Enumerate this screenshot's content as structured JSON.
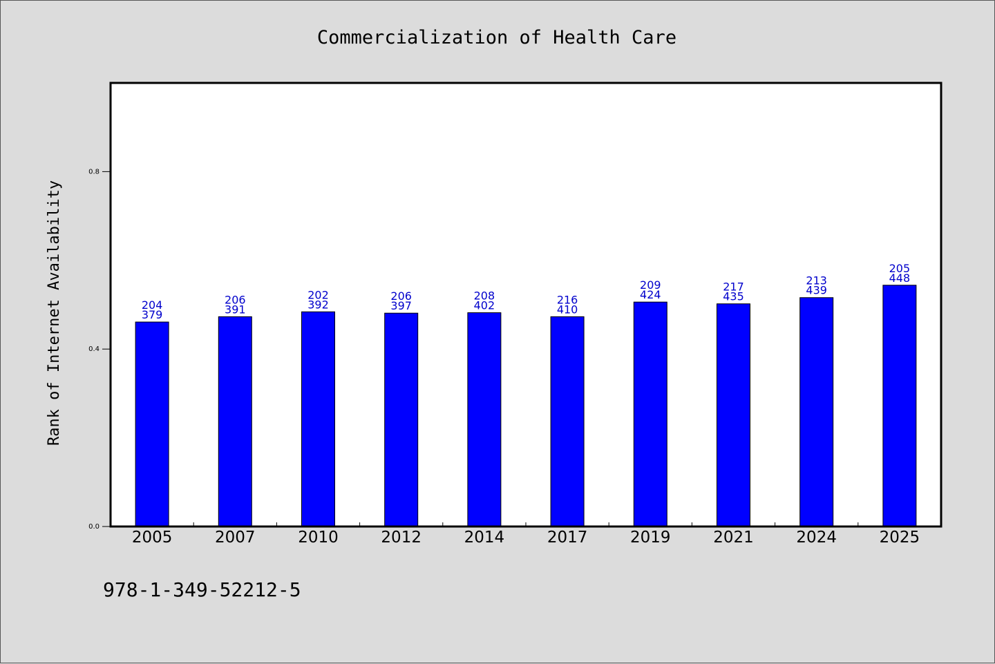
{
  "chart_data": {
    "type": "bar",
    "title": "Commercialization of Health Care",
    "xlabel": "",
    "ylabel": "Rank of Internet Availability",
    "ylim": [
      0,
      1.0
    ],
    "yticks": [
      "0.0",
      "0.4",
      "0.8"
    ],
    "ytick_values": [
      0.0,
      0.4,
      0.8
    ],
    "grid": false,
    "categories": [
      "2005",
      "2007",
      "2010",
      "2012",
      "2014",
      "2017",
      "2019",
      "2021",
      "2024",
      "2025"
    ],
    "values": [
      0.461,
      0.473,
      0.484,
      0.481,
      0.482,
      0.473,
      0.506,
      0.502,
      0.516,
      0.544
    ],
    "labels_top": [
      "204",
      "206",
      "202",
      "206",
      "208",
      "216",
      "209",
      "217",
      "213",
      "205"
    ],
    "labels_bottom": [
      "379",
      "391",
      "392",
      "397",
      "402",
      "410",
      "424",
      "435",
      "439",
      "448"
    ],
    "colors": {
      "bar": "#0000ff",
      "bar_edge": "#000000",
      "label": "#0000cc"
    }
  },
  "footer": {
    "isbn": "978-1-349-52212-5"
  }
}
